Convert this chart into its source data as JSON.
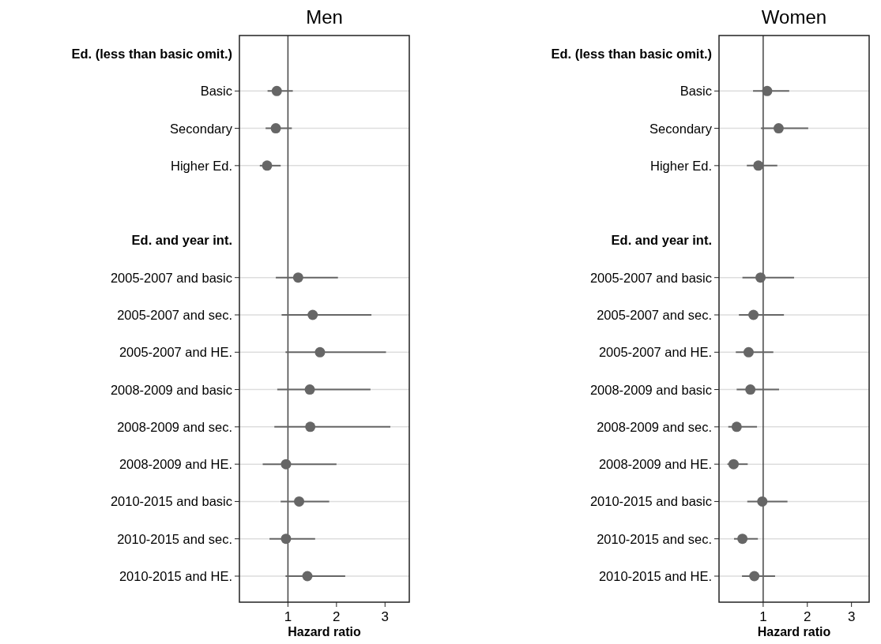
{
  "chart_data": [
    {
      "type": "scatter",
      "title": "Men",
      "xlabel": "Hazard ratio",
      "orientation": "horizontal",
      "marker": "circle",
      "grid": "y",
      "color": "#666666",
      "categories": [
        "Ed. (less than basic omit.)",
        "Basic",
        "Secondary",
        "Higher Ed.",
        null,
        "Ed. and year int.",
        "2005-2007 and basic",
        "2005-2007 and sec.",
        "2005-2007 and HE.",
        "2008-2009 and basic",
        "2008-2009 and sec.",
        "2008-2009 and HE.",
        "2010-2015 and basic",
        "2010-2015 and sec.",
        "2010-2015 and HE."
      ],
      "values": [
        null,
        0.77,
        0.75,
        0.57,
        null,
        null,
        1.21,
        1.51,
        1.66,
        1.45,
        1.46,
        0.96,
        1.23,
        0.96,
        1.4
      ],
      "errors": [
        null,
        [
          0.58,
          1.1
        ],
        [
          0.54,
          1.08
        ],
        [
          0.42,
          0.85
        ],
        null,
        null,
        [
          0.75,
          2.03
        ],
        [
          0.87,
          2.72
        ],
        [
          0.95,
          3.02
        ],
        [
          0.78,
          2.7
        ],
        [
          0.72,
          3.11
        ],
        [
          0.48,
          2.0
        ],
        [
          0.85,
          1.85
        ],
        [
          0.62,
          1.56
        ],
        [
          0.95,
          2.18
        ]
      ],
      "xlim": [
        0,
        3.5
      ],
      "xticks": [
        1,
        2,
        3
      ],
      "ref_lines": [
        {
          "axis": "x",
          "value": 1,
          "color": "#444444"
        }
      ]
    },
    {
      "type": "scatter",
      "title": "Women",
      "xlabel": "Hazard ratio",
      "orientation": "horizontal",
      "marker": "circle",
      "grid": "y",
      "color": "#666666",
      "categories": [
        "Ed. (less than basic omit.)",
        "Basic",
        "Secondary",
        "Higher Ed.",
        null,
        "Ed. and year int.",
        "2005-2007 and basic",
        "2005-2007 and sec.",
        "2005-2007 and HE.",
        "2008-2009 and basic",
        "2008-2009 and sec.",
        "2008-2009 and HE.",
        "2010-2015 and basic",
        "2010-2015 and sec.",
        "2010-2015 and HE."
      ],
      "values": [
        null,
        1.09,
        1.35,
        0.89,
        null,
        null,
        0.94,
        0.78,
        0.67,
        0.71,
        0.4,
        0.33,
        0.98,
        0.53,
        0.8
      ],
      "errors": [
        null,
        [
          0.77,
          1.59
        ],
        [
          0.95,
          2.02
        ],
        [
          0.63,
          1.32
        ],
        null,
        null,
        [
          0.53,
          1.7
        ],
        [
          0.45,
          1.47
        ],
        [
          0.38,
          1.23
        ],
        [
          0.4,
          1.36
        ],
        [
          0.21,
          0.86
        ],
        [
          0.19,
          0.65
        ],
        [
          0.64,
          1.55
        ],
        [
          0.34,
          0.88
        ],
        [
          0.52,
          1.27
        ]
      ],
      "xlim": [
        0,
        3.4
      ],
      "xticks": [
        1,
        2,
        3
      ],
      "ref_lines": [
        {
          "axis": "x",
          "value": 1,
          "color": "#444444"
        }
      ]
    }
  ]
}
